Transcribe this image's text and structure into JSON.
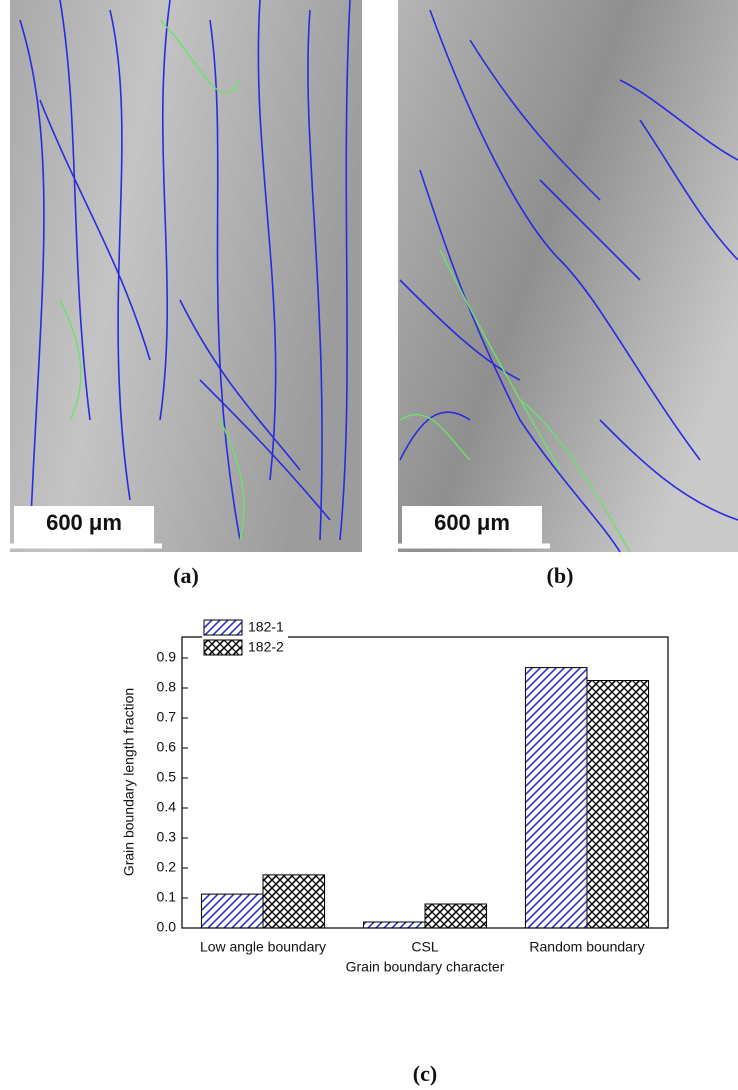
{
  "panels": [
    {
      "scale_label": "600 μm",
      "caption": "(a)"
    },
    {
      "scale_label": "600 μm",
      "caption": "(b)"
    }
  ],
  "chart_data": {
    "type": "bar",
    "caption": "(c)",
    "x_label": "Grain boundary character",
    "y_label": "Grain boundary length fraction",
    "categories": [
      "Low angle boundary",
      "CSL",
      "Random boundary"
    ],
    "series": [
      {
        "name": "182-1",
        "color": "#3333cc",
        "hatch": "diagonal",
        "values": [
          0.113,
          0.02,
          0.868
        ]
      },
      {
        "name": "182-2",
        "color": "#000000",
        "hatch": "cross",
        "values": [
          0.177,
          0.08,
          0.825
        ]
      }
    ],
    "ylim": [
      0,
      0.97
    ],
    "yticks": [
      {
        "value": 0,
        "label": "0.0"
      },
      0.1,
      0.2,
      0.3,
      0.4,
      0.5,
      0.6,
      0.7,
      0.8,
      0.9
    ],
    "legend": "top-left",
    "grid": false
  }
}
